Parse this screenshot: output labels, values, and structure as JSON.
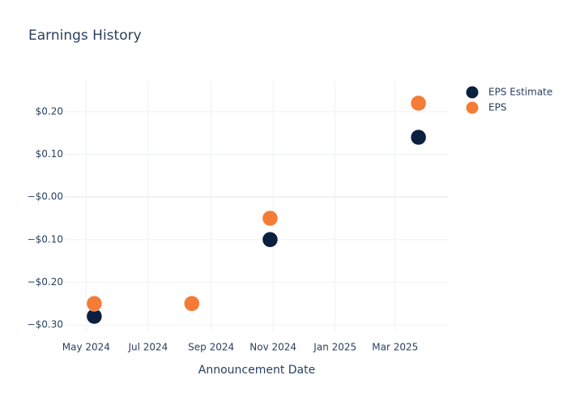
{
  "chart_data": {
    "type": "scatter",
    "title": "Earnings History",
    "x_label": "Announcement Date",
    "x": [
      "2024-05-09",
      "2024-08-13",
      "2024-10-29",
      "2025-03-24"
    ],
    "series": [
      {
        "name": "EPS Estimate",
        "color": "#0b1f3f",
        "values": [
          -0.28,
          -0.25,
          -0.1,
          0.14
        ]
      },
      {
        "name": "EPS",
        "color": "#f47c36",
        "values": [
          -0.25,
          -0.25,
          -0.05,
          0.22
        ]
      }
    ],
    "xlim": [
      "2024-04-10",
      "2025-04-22"
    ],
    "xticks": [
      {
        "value": "2024-05-01",
        "label": "May 2024"
      },
      {
        "value": "2024-07-01",
        "label": "Jul 2024"
      },
      {
        "value": "2024-09-01",
        "label": "Sep 2024"
      },
      {
        "value": "2024-11-01",
        "label": "Nov 2024"
      },
      {
        "value": "2025-01-01",
        "label": "Jan 2025"
      },
      {
        "value": "2025-03-01",
        "label": "Mar 2025"
      }
    ],
    "ylim": [
      -0.317,
      0.272
    ],
    "yticks": [
      {
        "value": 0.2,
        "label": "$0.20"
      },
      {
        "value": 0.1,
        "label": "$0.10"
      },
      {
        "value": 0,
        "label": "−$0.00"
      },
      {
        "value": -0.1,
        "label": "−$0.10"
      },
      {
        "value": -0.2,
        "label": "−$0.20"
      },
      {
        "value": -0.3,
        "label": "−$0.30"
      }
    ],
    "grid": true,
    "legend": "top-right"
  }
}
